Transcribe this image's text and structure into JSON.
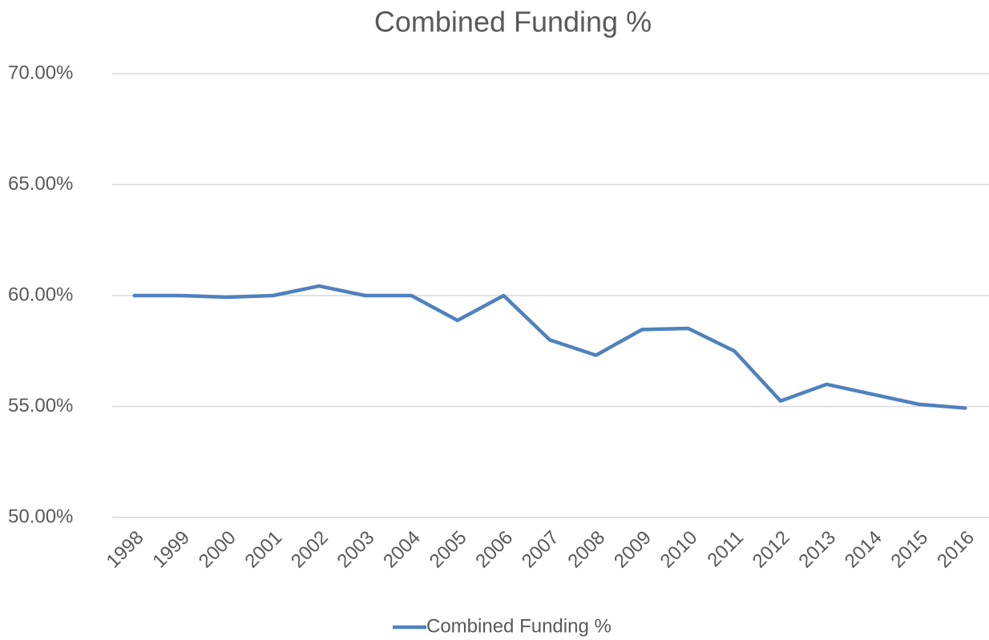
{
  "chart_data": {
    "type": "line",
    "title": "Combined Funding %",
    "categories": [
      "1998",
      "1999",
      "2000",
      "2001",
      "2002",
      "2003",
      "2004",
      "2005",
      "2006",
      "2007",
      "2008",
      "2009",
      "2010",
      "2011",
      "2012",
      "2013",
      "2014",
      "2015",
      "2016"
    ],
    "series": [
      {
        "name": "Combined Funding %",
        "color": "#4f81bd",
        "values": [
          60.0,
          60.0,
          59.93,
          60.0,
          60.43,
          60.0,
          60.0,
          58.88,
          60.0,
          58.0,
          57.31,
          58.47,
          58.52,
          57.5,
          55.25,
          56.0,
          55.55,
          55.1,
          54.93
        ]
      }
    ],
    "ylim": [
      50,
      70
    ],
    "yticks": [
      {
        "value": 50,
        "label": "50.00%"
      },
      {
        "value": 55,
        "label": "55.00%"
      },
      {
        "value": 60,
        "label": "60.00%"
      },
      {
        "value": 65,
        "label": "65.00%"
      },
      {
        "value": 70,
        "label": "70.00%"
      }
    ],
    "grid": true,
    "legend": "bottom"
  }
}
